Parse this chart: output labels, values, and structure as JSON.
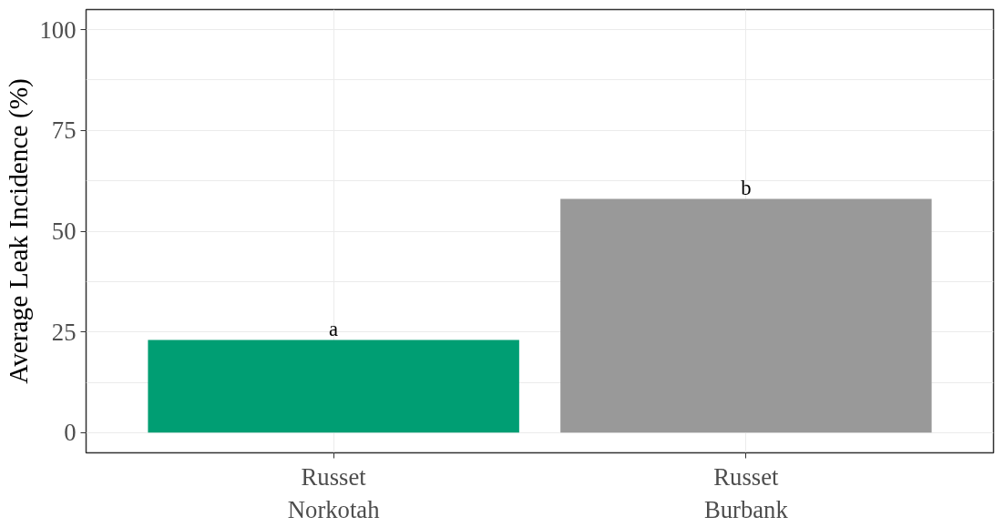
{
  "chart_data": {
    "type": "bar",
    "ylabel": "Average Leak Incidence (%)",
    "categories": [
      "Russet\nNorkotah",
      "Russet\nBurbank"
    ],
    "values": [
      23,
      58
    ],
    "colors": [
      "#009e73",
      "#999999"
    ],
    "ylim": [
      -5,
      105
    ],
    "yticks": [
      0,
      25,
      50,
      75,
      100
    ],
    "grid": true,
    "annotations": [
      {
        "text": "a",
        "x": "Russet\nNorkotah",
        "y": 23
      },
      {
        "text": "b",
        "x": "Russet\nBurbank",
        "y": 58
      }
    ]
  }
}
